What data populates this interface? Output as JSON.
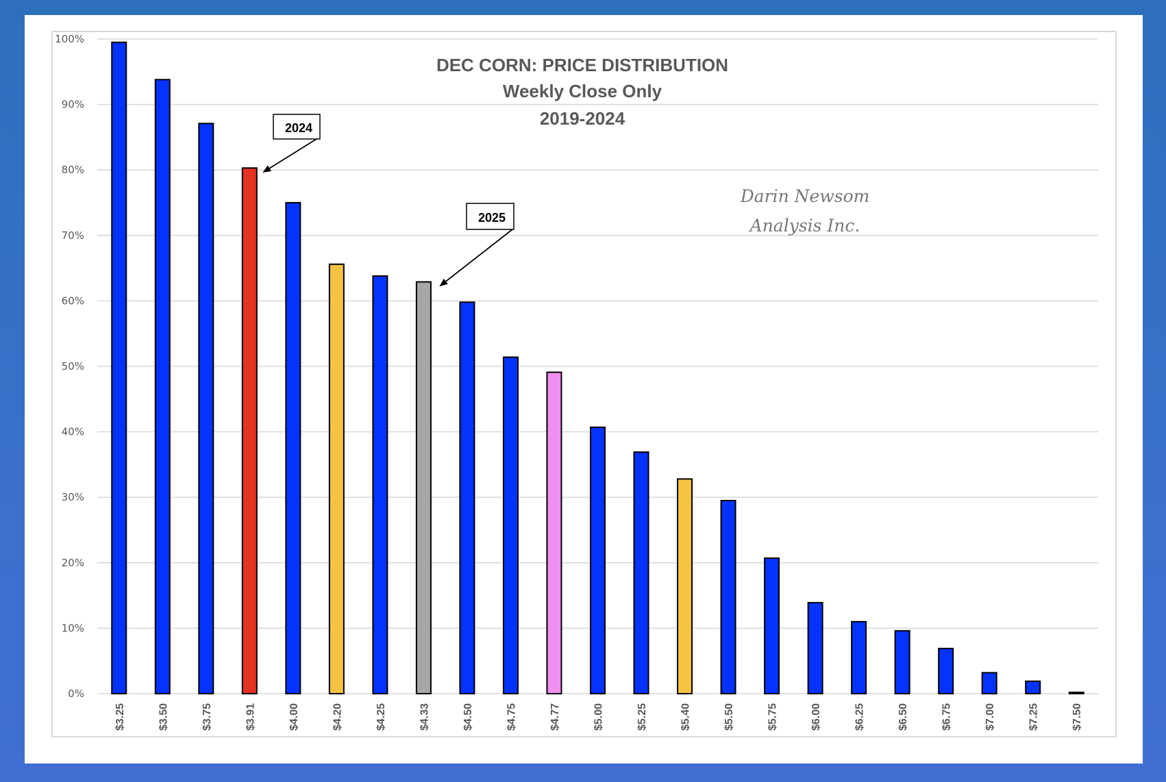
{
  "chart_data": {
    "type": "bar",
    "title": "DEC CORN: PRICE DISTRIBUTION",
    "subtitle": "Weekly Close Only",
    "period": "2019-2024",
    "xlabel": "",
    "ylabel": "",
    "ylim": [
      0,
      100
    ],
    "yticks": [
      "0%",
      "10%",
      "20%",
      "30%",
      "40%",
      "50%",
      "60%",
      "70%",
      "80%",
      "90%",
      "100%"
    ],
    "grid": true,
    "categories": [
      "$3.25",
      "$3.50",
      "$3.75",
      "$3.91",
      "$4.00",
      "$4.20",
      "$4.25",
      "$4.33",
      "$4.50",
      "$4.75",
      "$4.77",
      "$5.00",
      "$5.25",
      "$5.40",
      "$5.50",
      "$5.75",
      "$6.00",
      "$6.25",
      "$6.50",
      "$6.75",
      "$7.00",
      "$7.25",
      "$7.50"
    ],
    "values": [
      99.5,
      93.8,
      87.1,
      80.3,
      75.0,
      65.6,
      63.8,
      62.9,
      59.8,
      51.4,
      49.1,
      40.7,
      36.9,
      32.8,
      29.5,
      20.7,
      13.9,
      11.0,
      9.6,
      6.9,
      3.2,
      1.9,
      0.2
    ],
    "bar_colors": [
      "#0433ff",
      "#0433ff",
      "#0433ff",
      "#e63320",
      "#0433ff",
      "#f5c242",
      "#0433ff",
      "#a6a6a6",
      "#0433ff",
      "#0433ff",
      "#ef8ff0",
      "#0433ff",
      "#0433ff",
      "#f5c242",
      "#0433ff",
      "#0433ff",
      "#0433ff",
      "#0433ff",
      "#0433ff",
      "#0433ff",
      "#0433ff",
      "#0433ff",
      "#0433ff"
    ],
    "annotations": [
      {
        "text": "2024",
        "target": "$3.91"
      },
      {
        "text": "2025",
        "target": "$4.33"
      }
    ],
    "watermark": [
      "Darin Newsom",
      "Analysis Inc."
    ]
  }
}
